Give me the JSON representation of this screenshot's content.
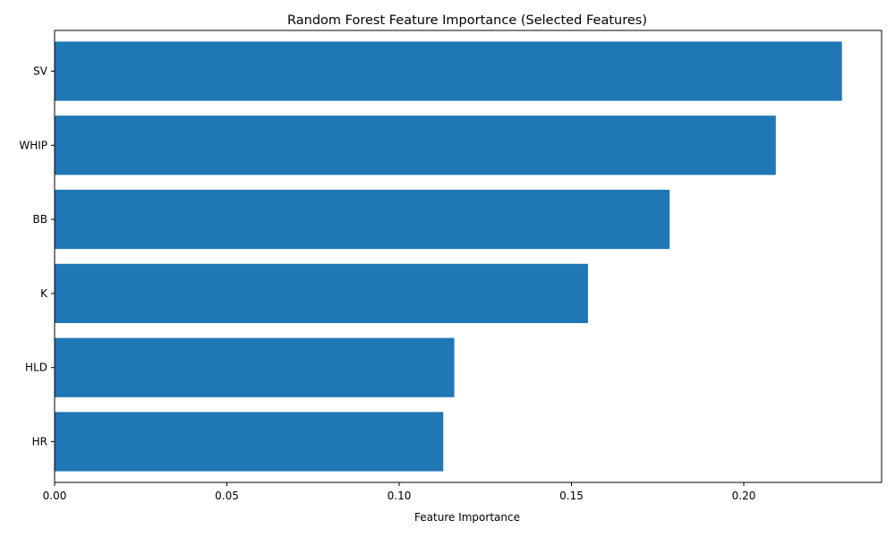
{
  "chart_data": {
    "type": "bar",
    "orientation": "horizontal",
    "title": "Random Forest Feature Importance (Selected Features)",
    "xlabel": "Feature Importance",
    "ylabel": "",
    "categories": [
      "SV",
      "WHIP",
      "BB",
      "K",
      "HLD",
      "HR"
    ],
    "values": [
      0.2285,
      0.2093,
      0.1785,
      0.1548,
      0.116,
      0.1128
    ],
    "xlim": [
      0.0,
      0.24
    ],
    "xticks": [
      "0.00",
      "0.05",
      "0.10",
      "0.15",
      "0.20"
    ],
    "xtick_values": [
      0.0,
      0.05,
      0.1,
      0.15,
      0.2
    ],
    "grid": false,
    "legend": "none",
    "colors": {
      "bar": "#1f77b4",
      "axes": "#000000",
      "background": "#ffffff"
    }
  }
}
